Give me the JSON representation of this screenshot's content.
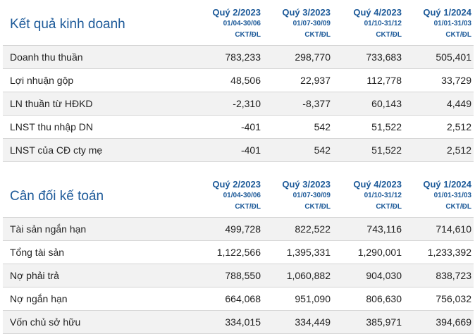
{
  "business": {
    "title": "Kết quả kinh doanh",
    "columns": [
      {
        "quarter": "Quý 2/2023",
        "dates": "01/04-30/06",
        "unit": "CKT/ĐL"
      },
      {
        "quarter": "Quý 3/2023",
        "dates": "01/07-30/09",
        "unit": "CKT/ĐL"
      },
      {
        "quarter": "Quý 4/2023",
        "dates": "01/10-31/12",
        "unit": "CKT/ĐL"
      },
      {
        "quarter": "Quý 1/2024",
        "dates": "01/01-31/03",
        "unit": "CKT/ĐL"
      }
    ],
    "rows": [
      {
        "label": "Doanh thu thuần",
        "values": [
          "783,233",
          "298,770",
          "733,683",
          "505,401"
        ]
      },
      {
        "label": "Lợi nhuận gộp",
        "values": [
          "48,506",
          "22,937",
          "112,778",
          "33,729"
        ]
      },
      {
        "label": "LN thuần từ HĐKD",
        "values": [
          "-2,310",
          "-8,377",
          "60,143",
          "4,449"
        ]
      },
      {
        "label": "LNST thu nhập DN",
        "values": [
          "-401",
          "542",
          "51,522",
          "2,512"
        ]
      },
      {
        "label": "LNST của CĐ cty mẹ",
        "values": [
          "-401",
          "542",
          "51,522",
          "2,512"
        ]
      }
    ]
  },
  "balance": {
    "title": "Cân đối kế toán",
    "columns": [
      {
        "quarter": "Quý 2/2023",
        "dates": "01/04-30/06",
        "unit": "CKT/ĐL"
      },
      {
        "quarter": "Quý 3/2023",
        "dates": "01/07-30/09",
        "unit": "CKT/ĐL"
      },
      {
        "quarter": "Quý 4/2023",
        "dates": "01/10-31/12",
        "unit": "CKT/ĐL"
      },
      {
        "quarter": "Quý 1/2024",
        "dates": "01/01-31/03",
        "unit": "CKT/ĐL"
      }
    ],
    "rows": [
      {
        "label": "Tài sản ngắn hạn",
        "values": [
          "499,728",
          "822,522",
          "743,116",
          "714,610"
        ]
      },
      {
        "label": "Tổng tài sản",
        "values": [
          "1,122,566",
          "1,395,331",
          "1,290,001",
          "1,233,392"
        ]
      },
      {
        "label": "Nợ phải trả",
        "values": [
          "788,550",
          "1,060,882",
          "904,030",
          "838,723"
        ]
      },
      {
        "label": "Nợ ngắn hạn",
        "values": [
          "664,068",
          "951,090",
          "806,630",
          "756,032"
        ]
      },
      {
        "label": "Vốn chủ sở hữu",
        "values": [
          "334,015",
          "334,449",
          "385,971",
          "394,669"
        ]
      }
    ]
  }
}
